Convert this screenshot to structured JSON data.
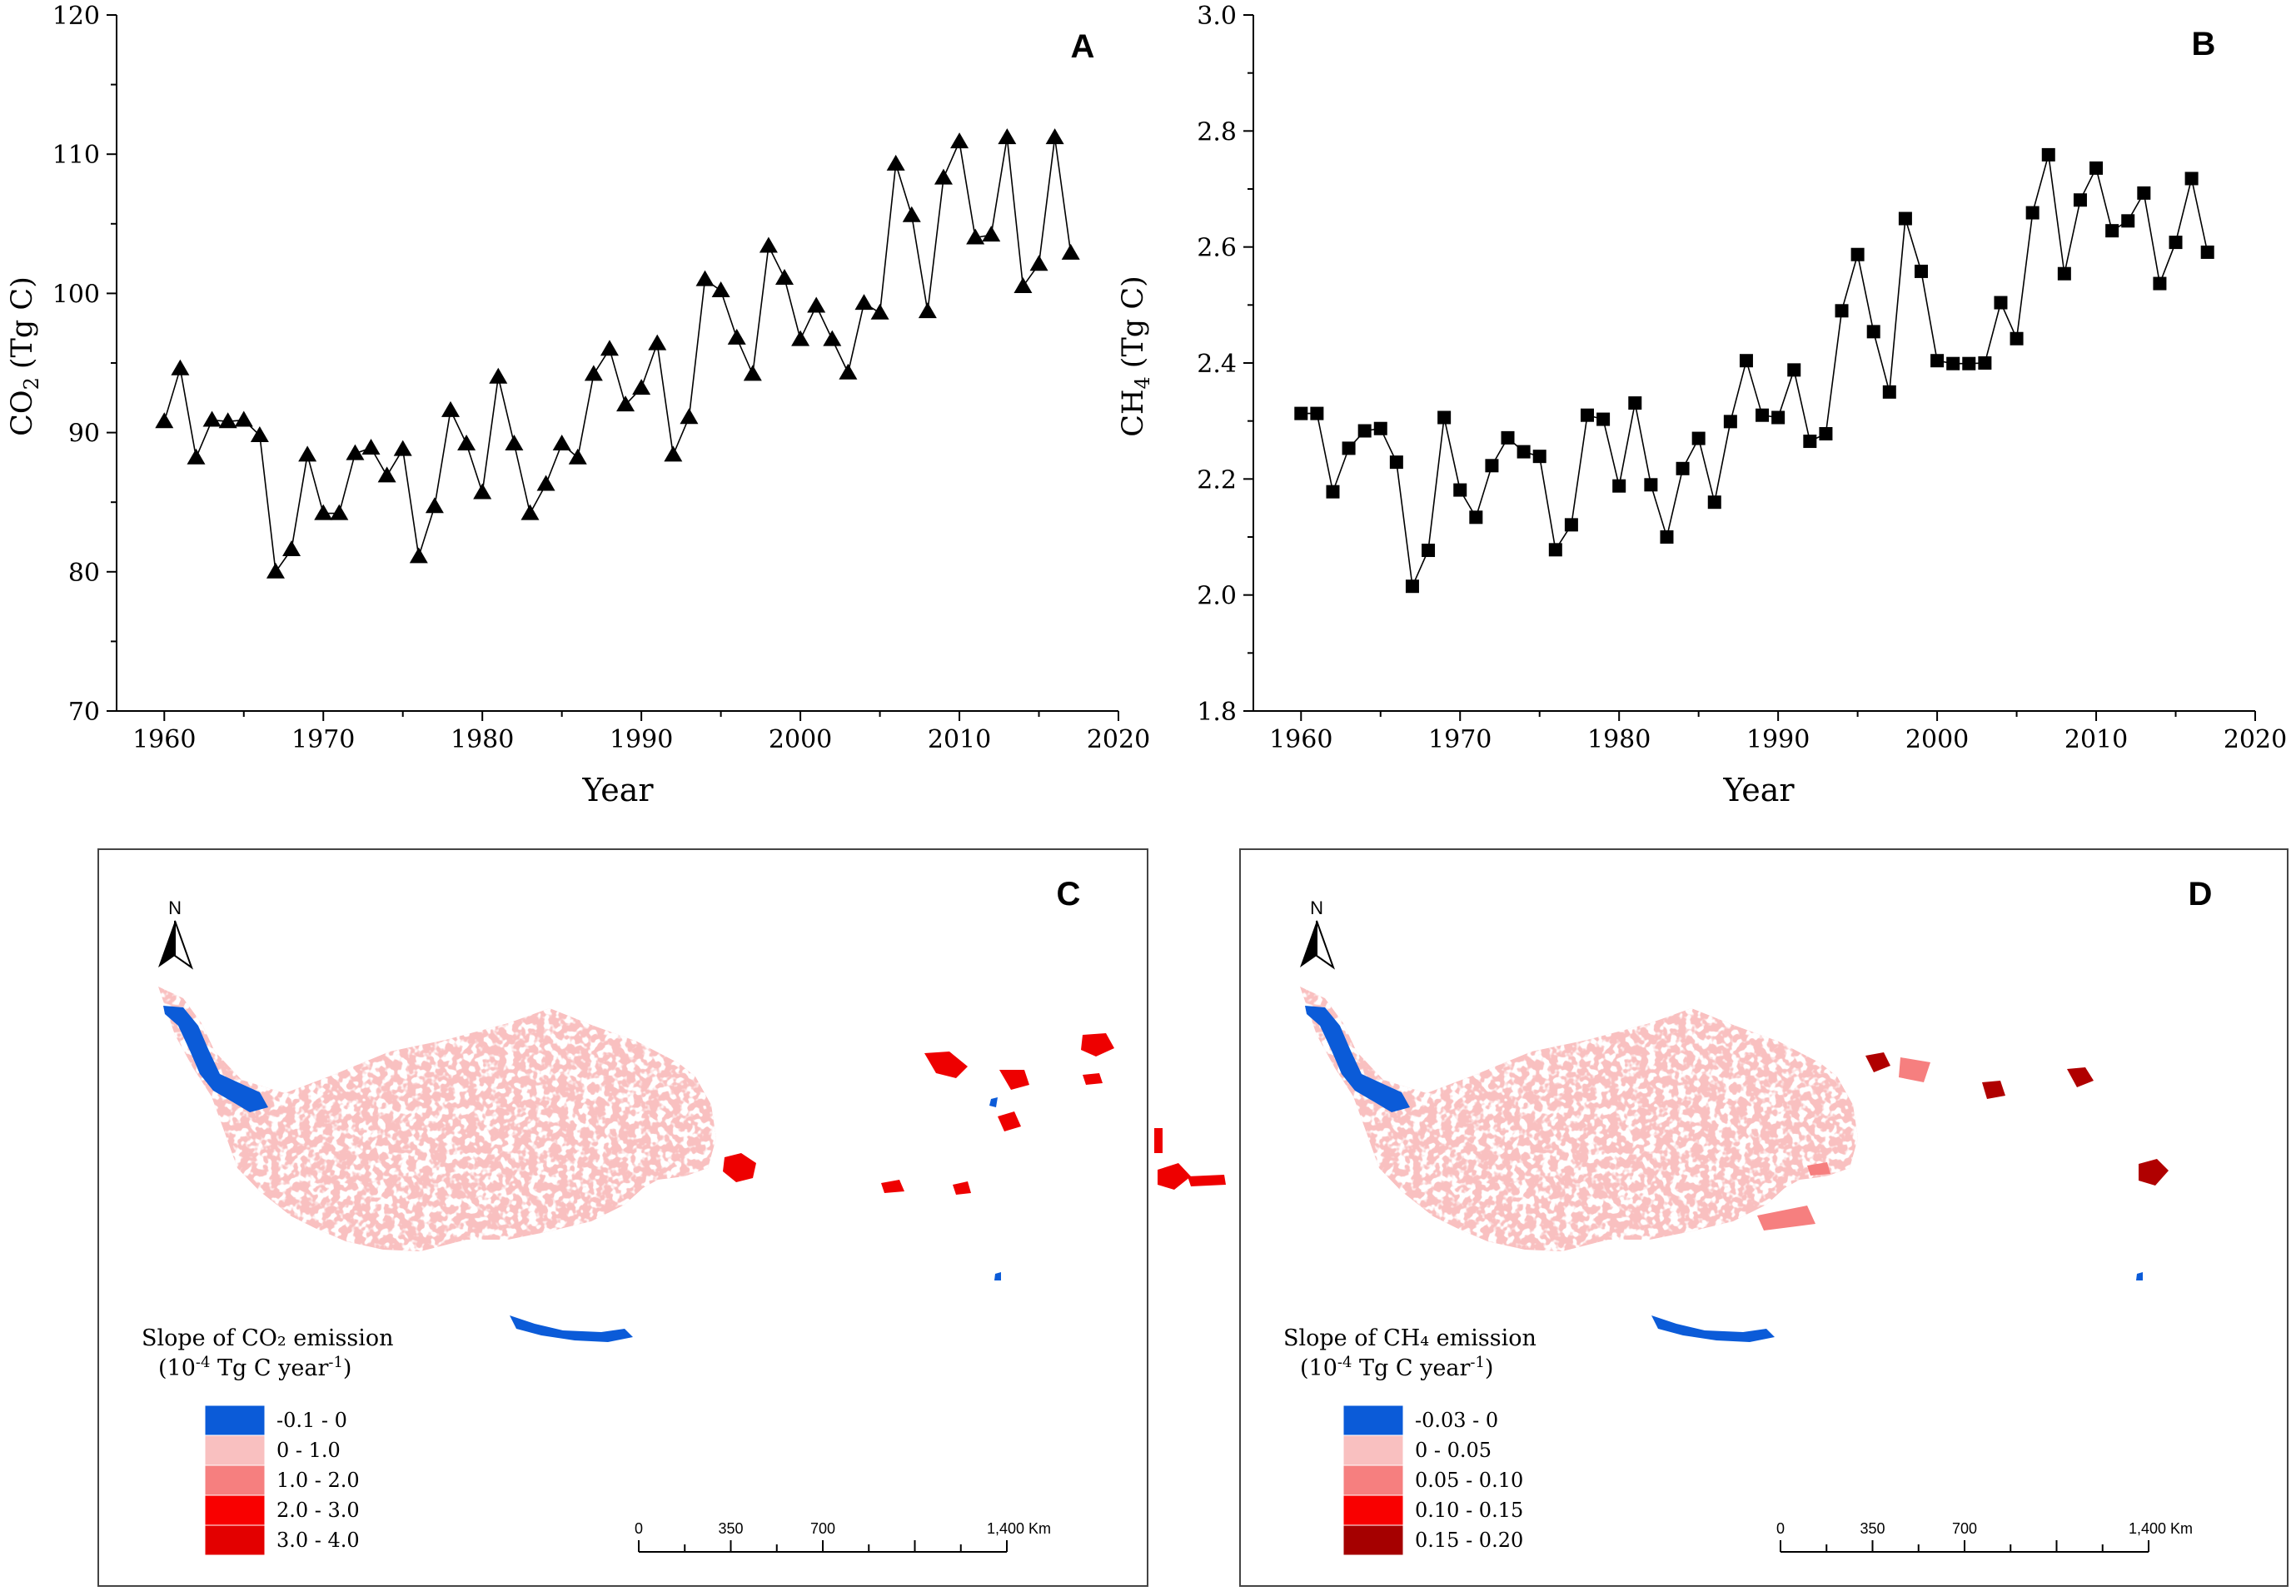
{
  "chart_data": [
    {
      "type": "line",
      "panel_label": "A",
      "ylabel_main": "CO",
      "ylabel_sub": "2",
      "ylabel_unit": "(Tg C)",
      "xlabel": "Year",
      "xlim": [
        1957,
        2020
      ],
      "ylim": [
        70,
        120
      ],
      "x_ticks": [
        "1960",
        "1970",
        "1980",
        "1990",
        "2000",
        "2010",
        "2020"
      ],
      "y_ticks": [
        "70",
        "80",
        "90",
        "100",
        "110",
        "120"
      ],
      "marker": "triangle",
      "series": [
        {
          "name": "CO2",
          "x": [
            1960,
            1961,
            1962,
            1963,
            1964,
            1965,
            1966,
            1967,
            1968,
            1969,
            1970,
            1971,
            1972,
            1973,
            1974,
            1975,
            1976,
            1977,
            1978,
            1979,
            1980,
            1981,
            1982,
            1983,
            1984,
            1985,
            1986,
            1987,
            1988,
            1989,
            1990,
            1991,
            1992,
            1993,
            1994,
            1995,
            1996,
            1997,
            1998,
            1999,
            2000,
            2001,
            2002,
            2003,
            2004,
            2005,
            2006,
            2007,
            2008,
            2009,
            2010,
            2011,
            2012,
            2013,
            2014,
            2015,
            2016,
            2017
          ],
          "values": [
            90.8,
            94.6,
            88.2,
            90.9,
            90.8,
            90.9,
            89.8,
            80.0,
            81.6,
            88.4,
            84.2,
            84.2,
            88.5,
            88.9,
            86.9,
            88.8,
            81.1,
            84.7,
            91.6,
            89.2,
            85.7,
            94.0,
            89.2,
            84.2,
            86.3,
            89.2,
            88.2,
            94.2,
            96.0,
            92.0,
            93.2,
            96.4,
            88.4,
            91.1,
            101.0,
            100.2,
            96.8,
            94.2,
            103.4,
            101.1,
            96.7,
            99.1,
            96.7,
            94.3,
            99.3,
            98.6,
            109.3,
            105.6,
            98.7,
            108.3,
            110.9,
            104.0,
            104.2,
            111.2,
            100.5,
            102.1,
            111.2,
            102.9
          ]
        }
      ]
    },
    {
      "type": "line",
      "panel_label": "B",
      "ylabel_main": "CH",
      "ylabel_sub": "4",
      "ylabel_unit": "(Tg C)",
      "xlabel": "Year",
      "xlim": [
        1957,
        2020
      ],
      "ylim": [
        1.8,
        3.0
      ],
      "x_ticks": [
        "1960",
        "1970",
        "1980",
        "1990",
        "2000",
        "2010",
        "2020"
      ],
      "y_ticks": [
        "1.8",
        "2.0",
        "2.2",
        "2.4",
        "2.6",
        "2.8",
        "3.0"
      ],
      "marker": "square",
      "series": [
        {
          "name": "CH4",
          "x": [
            1960,
            1961,
            1962,
            1963,
            1964,
            1965,
            1966,
            1967,
            1968,
            1969,
            1970,
            1971,
            1972,
            1973,
            1974,
            1975,
            1976,
            1977,
            1978,
            1979,
            1980,
            1981,
            1982,
            1983,
            1984,
            1985,
            1986,
            1987,
            1988,
            1989,
            1990,
            1991,
            1992,
            1993,
            1994,
            1995,
            1996,
            1997,
            1998,
            1999,
            2000,
            2001,
            2002,
            2003,
            2004,
            2005,
            2006,
            2007,
            2008,
            2009,
            2010,
            2011,
            2012,
            2013,
            2014,
            2015,
            2016,
            2017
          ],
          "values": [
            2.313,
            2.313,
            2.178,
            2.253,
            2.283,
            2.287,
            2.229,
            2.015,
            2.077,
            2.306,
            2.181,
            2.134,
            2.223,
            2.271,
            2.247,
            2.239,
            2.078,
            2.121,
            2.31,
            2.303,
            2.188,
            2.331,
            2.19,
            2.1,
            2.218,
            2.27,
            2.16,
            2.299,
            2.404,
            2.31,
            2.306,
            2.388,
            2.265,
            2.278,
            2.49,
            2.587,
            2.454,
            2.35,
            2.649,
            2.558,
            2.404,
            2.399,
            2.399,
            2.4,
            2.504,
            2.442,
            2.659,
            2.759,
            2.554,
            2.681,
            2.736,
            2.628,
            2.645,
            2.693,
            2.537,
            2.608,
            2.718,
            2.591
          ]
        }
      ]
    }
  ],
  "maps": [
    {
      "panel_label": "C",
      "north_label": "N",
      "legend_title_main": "Slope of CO₂ emission",
      "legend_unit_pre": "(10",
      "legend_unit_exp": "-4",
      "legend_unit_mid": " Tg C year",
      "legend_unit_exp2": "-1",
      "legend_unit_post": ")",
      "legend": [
        {
          "label": "-0.1 - 0",
          "color": "#0b5bd8"
        },
        {
          "label": "0 - 1.0",
          "color": "#f9c0c0"
        },
        {
          "label": "1.0 - 2.0",
          "color": "#f67f7f"
        },
        {
          "label": "2.0 - 3.0",
          "color": "#f90000"
        },
        {
          "label": "3.0 - 4.0",
          "color": "#e30000"
        }
      ],
      "scale_labels": [
        "0",
        "350",
        "700",
        "1,400 Km"
      ]
    },
    {
      "panel_label": "D",
      "north_label": "N",
      "legend_title_main": "Slope of CH₄ emission",
      "legend_unit_pre": "(10",
      "legend_unit_exp": "-4",
      "legend_unit_mid": " Tg C year",
      "legend_unit_exp2": "-1",
      "legend_unit_post": ")",
      "legend": [
        {
          "label": "-0.03 - 0",
          "color": "#0b5bd8"
        },
        {
          "label": "0 - 0.05",
          "color": "#f9c0c0"
        },
        {
          "label": "0.05 - 0.10",
          "color": "#f67f7f"
        },
        {
          "label": "0.10 - 0.15",
          "color": "#f90000"
        },
        {
          "label": "0.15 - 0.20",
          "color": "#a50000"
        }
      ],
      "scale_labels": [
        "0",
        "350",
        "700",
        "1,400 Km"
      ]
    }
  ]
}
